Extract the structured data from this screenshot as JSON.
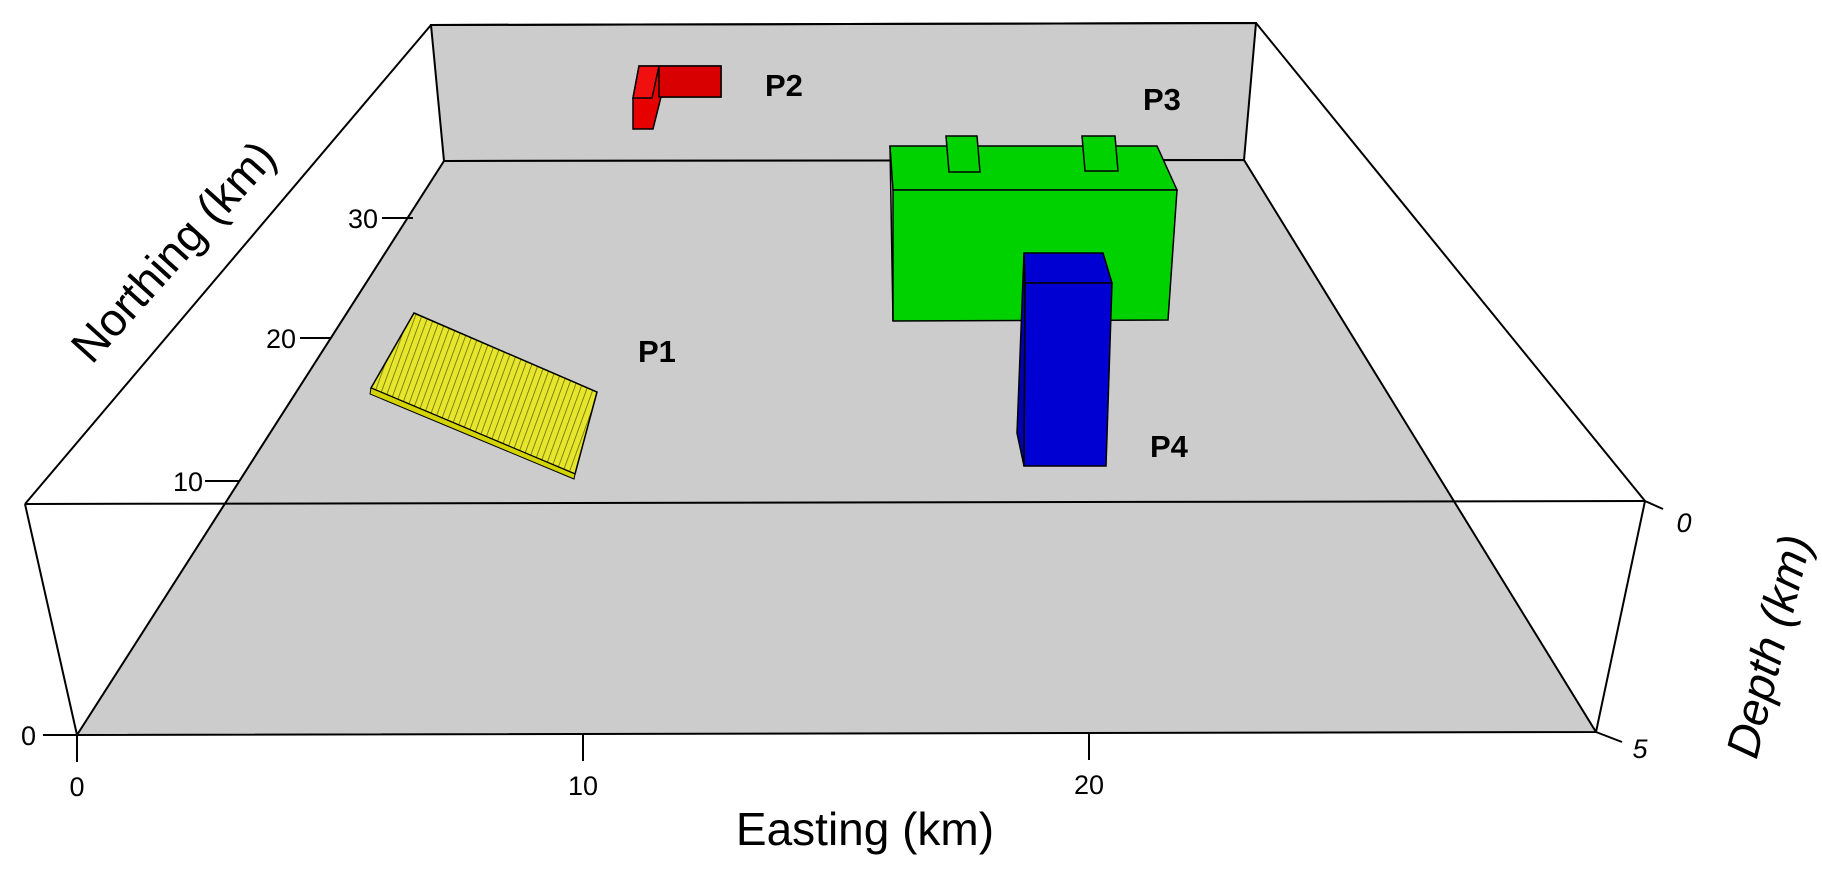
{
  "axes": {
    "easting": {
      "title": "Easting (km)",
      "ticks": [
        "0",
        "10",
        "20"
      ]
    },
    "northing": {
      "title": "Northing (km)",
      "ticks": [
        "0",
        "10",
        "20",
        "30"
      ]
    },
    "depth": {
      "title": "Depth (km)",
      "ticks": [
        "0",
        "5"
      ]
    }
  },
  "prisms": [
    {
      "label": "P1",
      "color": "#e6e62e"
    },
    {
      "label": "P2",
      "color": "#e60000"
    },
    {
      "label": "P3",
      "color": "#00d200"
    },
    {
      "label": "P4",
      "color": "#0000d2"
    }
  ],
  "colors": {
    "plane": "#cccccc",
    "edge": "#000000"
  }
}
